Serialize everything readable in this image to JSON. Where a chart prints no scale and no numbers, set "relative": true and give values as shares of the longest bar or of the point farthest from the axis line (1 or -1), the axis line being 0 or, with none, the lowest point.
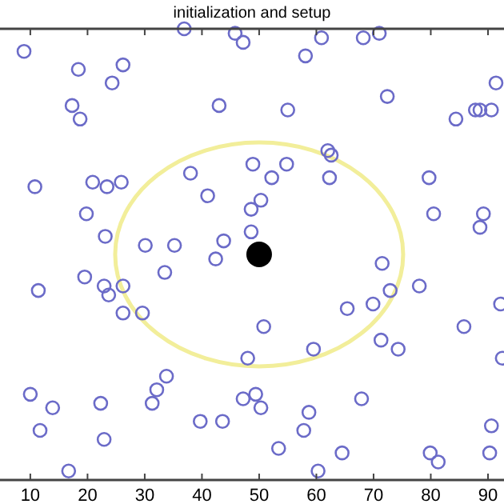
{
  "chart_data": {
    "type": "scatter",
    "title": "initialization and setup",
    "relative": true,
    "xlim": [
      4.7,
      92.8
    ],
    "xticks": [
      10,
      20,
      30,
      40,
      50,
      60,
      70,
      80,
      90
    ],
    "grid": false,
    "marker": "circle",
    "series": [
      {
        "color": "#6b6bc8",
        "x": [
          36.9,
          8.9,
          18.4,
          26.2,
          24.3,
          17.3,
          18.7,
          45.8,
          47.2,
          43.0,
          10.8,
          20.9,
          23.4,
          25.9,
          38.0,
          41.0,
          19.8,
          23.1,
          30.1,
          35.2,
          43.8,
          48.9,
          48.6,
          48.6,
          60.9,
          68.2,
          71.0,
          58.1,
          91.4,
          72.4,
          55.0,
          84.4,
          87.8,
          88.6,
          90.6,
          62.0,
          62.6,
          54.8,
          52.2,
          62.3,
          79.7,
          50.3,
          80.5,
          89.2,
          88.6,
          11.4,
          19.5,
          22.9,
          23.7,
          26.2,
          26.2,
          29.6,
          33.5,
          42.4,
          48.0,
          10.0,
          13.9,
          11.7,
          22.3,
          22.9,
          16.7,
          33.8,
          32.1,
          31.3,
          39.7,
          43.6,
          47.2,
          71.5,
          72.9,
          78.0,
          65.4,
          69.9,
          50.8,
          59.5,
          71.3,
          74.3,
          85.8,
          92.2,
          92.5,
          49.4,
          50.3,
          58.7,
          57.8,
          67.9,
          53.4,
          64.5,
          60.3,
          79.9,
          81.3,
          90.6,
          90.3
        ],
        "values": [
          1.0,
          0.95,
          0.91,
          0.92,
          0.88,
          0.83,
          0.8,
          0.99,
          0.97,
          0.83,
          0.65,
          0.66,
          0.65,
          0.66,
          0.68,
          0.63,
          0.59,
          0.54,
          0.52,
          0.52,
          0.53,
          0.7,
          0.6,
          0.55,
          0.98,
          0.98,
          0.99,
          0.94,
          0.88,
          0.85,
          0.82,
          0.8,
          0.82,
          0.82,
          0.82,
          0.73,
          0.72,
          0.7,
          0.67,
          0.67,
          0.67,
          0.62,
          0.59,
          0.59,
          0.56,
          0.42,
          0.45,
          0.43,
          0.41,
          0.43,
          0.37,
          0.37,
          0.46,
          0.49,
          0.27,
          0.19,
          0.16,
          0.11,
          0.17,
          0.09,
          0.02,
          0.23,
          0.2,
          0.17,
          0.13,
          0.13,
          0.18,
          0.48,
          0.42,
          0.43,
          0.38,
          0.39,
          0.34,
          0.29,
          0.31,
          0.29,
          0.34,
          0.39,
          0.27,
          0.19,
          0.16,
          0.15,
          0.11,
          0.18,
          0.07,
          0.06,
          0.02,
          0.06,
          0.04,
          0.12,
          0.06
        ]
      },
      {
        "type": "bubble",
        "color": "#000000",
        "x": [
          50
        ],
        "values": [
          0.5
        ],
        "sizes": [
          1
        ]
      }
    ]
  }
}
